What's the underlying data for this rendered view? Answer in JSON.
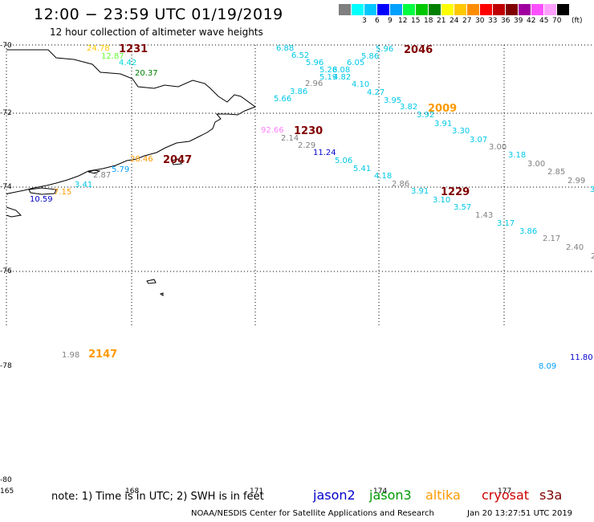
{
  "title": "12:00 − 23:59 UTC 01/19/2019",
  "subtitle": "12 hour collection of altimeter wave heights",
  "scale": {
    "unit": "(ft)",
    "bins": [
      {
        "label": "",
        "color": "#7f7f7f"
      },
      {
        "label": "3",
        "color": "#00ffff"
      },
      {
        "label": "6",
        "color": "#00c8ff"
      },
      {
        "label": "9",
        "color": "#0000ff"
      },
      {
        "label": "12",
        "color": "#00a0ff"
      },
      {
        "label": "15",
        "color": "#00ff40"
      },
      {
        "label": "18",
        "color": "#00c800"
      },
      {
        "label": "21",
        "color": "#008000"
      },
      {
        "label": "24",
        "color": "#ffff00"
      },
      {
        "label": "27",
        "color": "#ffc800"
      },
      {
        "label": "30",
        "color": "#ff8c00"
      },
      {
        "label": "33",
        "color": "#ff0000"
      },
      {
        "label": "36",
        "color": "#c00000"
      },
      {
        "label": "39",
        "color": "#800000"
      },
      {
        "label": "42",
        "color": "#a000a0"
      },
      {
        "label": "45",
        "color": "#ff50ff"
      },
      {
        "label": "70",
        "color": "#ffa0ff"
      },
      {
        "label": "",
        "color": "#000000"
      }
    ]
  },
  "latitudes": [
    "-70",
    "-72",
    "-74",
    "-76",
    "-78",
    "-80"
  ],
  "longitudes": [
    "165",
    "168",
    "171",
    "174",
    "177"
  ],
  "note": "note: 1) Time is in UTC; 2) SWH is in feet",
  "satellites": [
    {
      "name": "jason2",
      "color": "#0000cc"
    },
    {
      "name": "jason3",
      "color": "#009900"
    },
    {
      "name": "altika",
      "color": "#ff9900"
    },
    {
      "name": "cryosat",
      "color": "#cc0000"
    },
    {
      "name": "s3a",
      "color": "#800000"
    }
  ],
  "credit": "NOAA/NESDIS Center for Satellite Applications and Research",
  "timestamp": "Jan 20 13:27:51 UTC 2019",
  "observations": [
    {
      "text": "24.78",
      "color": "#ffc800"
    },
    {
      "text": "1231",
      "color": "#800000",
      "bold": true
    },
    {
      "text": "12.87",
      "color": "#66ff33"
    },
    {
      "text": "4.42",
      "color": "#00d8d8"
    },
    {
      "text": "20.37",
      "color": "#008000"
    },
    {
      "text": "6.88",
      "color": "#00c8e8"
    },
    {
      "text": "6.52",
      "color": "#00c8e8"
    },
    {
      "text": "5.96",
      "color": "#00c8e8"
    },
    {
      "text": "5.28",
      "color": "#00c8e8"
    },
    {
      "text": "6.08",
      "color": "#00c8e8"
    },
    {
      "text": "6.05",
      "color": "#00c8e8"
    },
    {
      "text": "5.86",
      "color": "#00c8e8"
    },
    {
      "text": "5.96",
      "color": "#00c8e8"
    },
    {
      "text": "2046",
      "color": "#800000",
      "bold": true
    },
    {
      "text": "5.19",
      "color": "#00c8e8"
    },
    {
      "text": "4.82",
      "color": "#00c8e8"
    },
    {
      "text": "2.96",
      "color": "#808080"
    },
    {
      "text": "4.10",
      "color": "#00c8e8"
    },
    {
      "text": "3.86",
      "color": "#00c8e8"
    },
    {
      "text": "4.27",
      "color": "#00c8e8"
    },
    {
      "text": "5.66",
      "color": "#00c8e8"
    },
    {
      "text": "3.95",
      "color": "#00c8e8"
    },
    {
      "text": "3.82",
      "color": "#00c8e8"
    },
    {
      "text": "2009",
      "color": "#ff9900",
      "bold": true
    },
    {
      "text": "3.92",
      "color": "#00c8e8"
    },
    {
      "text": "3.91",
      "color": "#00c8e8"
    },
    {
      "text": "92.66",
      "color": "#ff80ff"
    },
    {
      "text": "1230",
      "color": "#800000",
      "bold": true
    },
    {
      "text": "3.30",
      "color": "#00c8e8"
    },
    {
      "text": "2.14",
      "color": "#808080"
    },
    {
      "text": "3.07",
      "color": "#00c8e8"
    },
    {
      "text": "2.29",
      "color": "#808080"
    },
    {
      "text": "3.00",
      "color": "#808080"
    },
    {
      "text": "11.24",
      "color": "#0000cc"
    },
    {
      "text": "3.18",
      "color": "#00c8e8"
    },
    {
      "text": "28.46",
      "color": "#ff9900"
    },
    {
      "text": "2047",
      "color": "#800000",
      "bold": true
    },
    {
      "text": "5.06",
      "color": "#00c8e8"
    },
    {
      "text": "3.00",
      "color": "#808080"
    },
    {
      "text": "5.79",
      "color": "#00a0ff"
    },
    {
      "text": "5.41",
      "color": "#00c8e8"
    },
    {
      "text": "2.85",
      "color": "#808080"
    },
    {
      "text": "2.87",
      "color": "#808080"
    },
    {
      "text": "4.18",
      "color": "#00c8e8"
    },
    {
      "text": "2.99",
      "color": "#808080"
    },
    {
      "text": "3.41",
      "color": "#00c8e8"
    },
    {
      "text": "2.86",
      "color": "#808080"
    },
    {
      "text": "3.91",
      "color": "#00c8e8"
    },
    {
      "text": "1229",
      "color": "#800000",
      "bold": true
    },
    {
      "text": "3",
      "color": "#00c8e8"
    },
    {
      "text": "7.15",
      "color": "#ff9900"
    },
    {
      "text": "3.10",
      "color": "#00c8e8"
    },
    {
      "text": "10.59",
      "color": "#0000cc"
    },
    {
      "text": "3.57",
      "color": "#00c8e8"
    },
    {
      "text": "1.43",
      "color": "#808080"
    },
    {
      "text": "3.17",
      "color": "#00c8e8"
    },
    {
      "text": "3.86",
      "color": "#00c8e8"
    },
    {
      "text": "2.17",
      "color": "#808080"
    },
    {
      "text": "2.40",
      "color": "#808080"
    },
    {
      "text": "2",
      "color": "#808080"
    },
    {
      "text": "1.98",
      "color": "#808080"
    },
    {
      "text": "2147",
      "color": "#ff9900",
      "bold": true
    },
    {
      "text": "11.80",
      "color": "#0000cc"
    },
    {
      "text": "8.09",
      "color": "#00a0ff"
    }
  ]
}
